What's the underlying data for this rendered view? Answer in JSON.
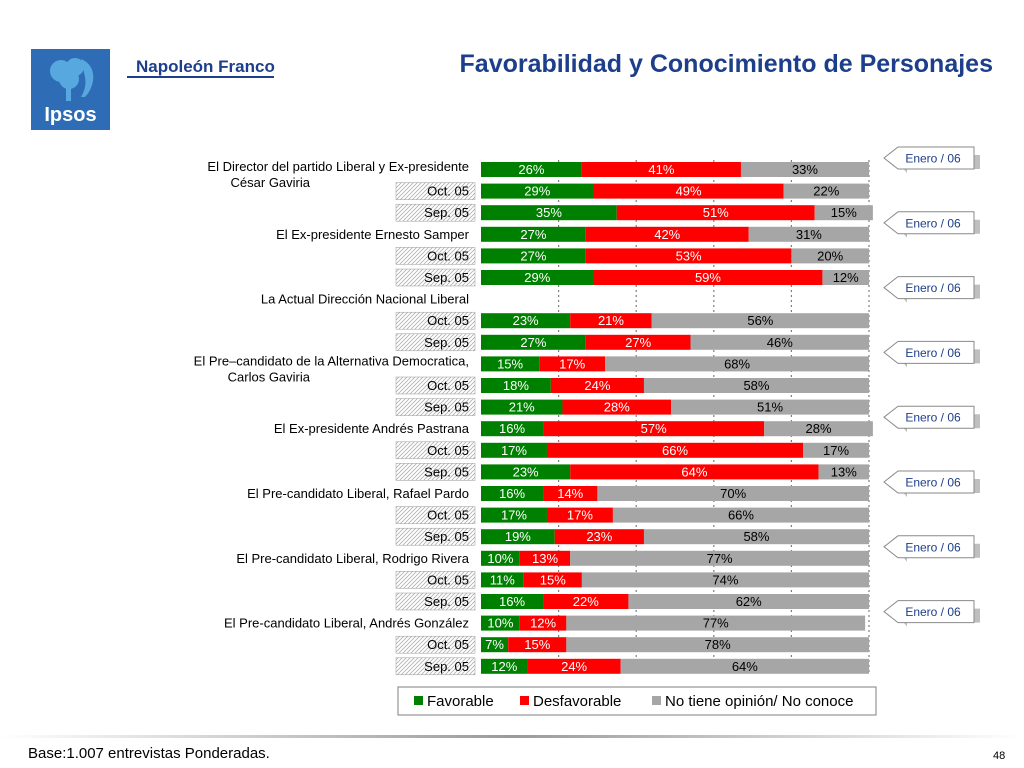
{
  "header": {
    "brand": "Napoleón Franco",
    "logo_text": "Ipsos",
    "title": "Favorabilidad y Conocimiento de Personajes"
  },
  "footer": {
    "base_note": "Base:1.007 entrevistas Ponderadas.",
    "page_number": "48"
  },
  "colors": {
    "favorable": "#008000",
    "desfavorable": "#ff0000",
    "no_opinion": "#a6a6a6",
    "title": "#1d3e8a",
    "logo": "#2e6db5"
  },
  "badge_label": "Enero / 06",
  "chart_data": {
    "type": "bar",
    "orientation": "horizontal",
    "stacked": true,
    "xlim": [
      0,
      100
    ],
    "legend_position": "bottom",
    "series": [
      {
        "name": "Favorable"
      },
      {
        "name": "Desfavorable"
      },
      {
        "name": "No tiene opinión/ No conoce"
      }
    ],
    "groups": [
      {
        "label": "El Director del partido Liberal y Ex-presidente César Gaviria",
        "rows": [
          {
            "label": "",
            "values": [
              26,
              41,
              33
            ]
          },
          {
            "label": "Oct. 05",
            "values": [
              29,
              49,
              22
            ]
          },
          {
            "label": "Sep. 05",
            "values": [
              35,
              51,
              15
            ]
          }
        ]
      },
      {
        "label": "El Ex-presidente Ernesto Samper",
        "rows": [
          {
            "label": "",
            "values": [
              27,
              42,
              31
            ]
          },
          {
            "label": "Oct. 05",
            "values": [
              27,
              53,
              20
            ]
          },
          {
            "label": "Sep. 05",
            "values": [
              29,
              59,
              12
            ]
          }
        ]
      },
      {
        "label": "La Actual Dirección Nacional Liberal",
        "rows": [
          {
            "label": "",
            "values": null
          },
          {
            "label": "Oct. 05",
            "values": [
              23,
              21,
              56
            ]
          },
          {
            "label": "Sep. 05",
            "values": [
              27,
              27,
              46
            ]
          }
        ]
      },
      {
        "label": "El Pre–candidato de la Alternativa Democratica, Carlos Gaviria",
        "rows": [
          {
            "label": "",
            "values": [
              15,
              17,
              68
            ]
          },
          {
            "label": "Oct. 05",
            "values": [
              18,
              24,
              58
            ]
          },
          {
            "label": "Sep. 05",
            "values": [
              21,
              28,
              51
            ]
          }
        ]
      },
      {
        "label": "El Ex-presidente Andrés Pastrana",
        "rows": [
          {
            "label": "",
            "values": [
              16,
              57,
              28
            ]
          },
          {
            "label": "Oct. 05",
            "values": [
              17,
              66,
              17
            ]
          },
          {
            "label": "Sep. 05",
            "values": [
              23,
              64,
              13
            ]
          }
        ]
      },
      {
        "label": "El Pre-candidato Liberal, Rafael Pardo",
        "rows": [
          {
            "label": "",
            "values": [
              16,
              14,
              70
            ]
          },
          {
            "label": "Oct. 05",
            "values": [
              17,
              17,
              66
            ]
          },
          {
            "label": "Sep. 05",
            "values": [
              19,
              23,
              58
            ]
          }
        ]
      },
      {
        "label": "El Pre-candidato Liberal, Rodrigo Rivera",
        "rows": [
          {
            "label": "",
            "values": [
              10,
              13,
              77
            ]
          },
          {
            "label": "Oct. 05",
            "values": [
              11,
              15,
              74
            ]
          },
          {
            "label": "Sep. 05",
            "values": [
              16,
              22,
              62
            ]
          }
        ]
      },
      {
        "label": "El Pre-candidato Liberal, Andrés González",
        "rows": [
          {
            "label": "",
            "values": [
              10,
              12,
              77
            ]
          },
          {
            "label": "Oct. 05",
            "values": [
              7,
              15,
              78
            ]
          },
          {
            "label": "Sep. 05",
            "values": [
              12,
              24,
              64
            ]
          }
        ]
      }
    ]
  }
}
